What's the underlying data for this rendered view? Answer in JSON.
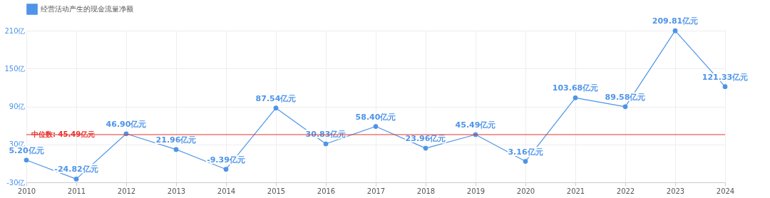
{
  "chart_data": {
    "type": "line",
    "categories": [
      "2010",
      "2011",
      "2012",
      "2013",
      "2014",
      "2015",
      "2016",
      "2017",
      "2018",
      "2019",
      "2020",
      "2021",
      "2022",
      "2023",
      "2024"
    ],
    "series": [
      {
        "name": "经营活动产生的现金流量净额",
        "color": "#4e94e8",
        "values": [
          5.2,
          -24.82,
          46.9,
          21.96,
          -9.39,
          87.54,
          30.83,
          58.4,
          23.96,
          45.49,
          3.16,
          103.68,
          89.58,
          209.81,
          121.33
        ],
        "value_labels": [
          "5.20亿元",
          "-24.82亿元",
          "46.90亿元",
          "21.96亿元",
          "-9.39亿元",
          "87.54亿元",
          "30.83亿元",
          "58.40亿元",
          "23.96亿元",
          "45.49亿元",
          "3.16亿元",
          "103.68亿元",
          "89.58亿元",
          "209.81亿元",
          "121.33亿元"
        ]
      }
    ],
    "ylim": [
      -30,
      210
    ],
    "yticks": [
      {
        "value": -30,
        "label": "-30亿"
      },
      {
        "value": 30,
        "label": "30亿"
      },
      {
        "value": 90,
        "label": "90亿"
      },
      {
        "value": 150,
        "label": "150亿"
      },
      {
        "value": 210,
        "label": "210亿"
      }
    ],
    "ref_lines": [
      {
        "axis": "y",
        "value": 45.49,
        "label": "中位数: 45.49亿元",
        "color": "#e8322e"
      }
    ],
    "grid": true,
    "legend": "top",
    "marker": "circle"
  }
}
